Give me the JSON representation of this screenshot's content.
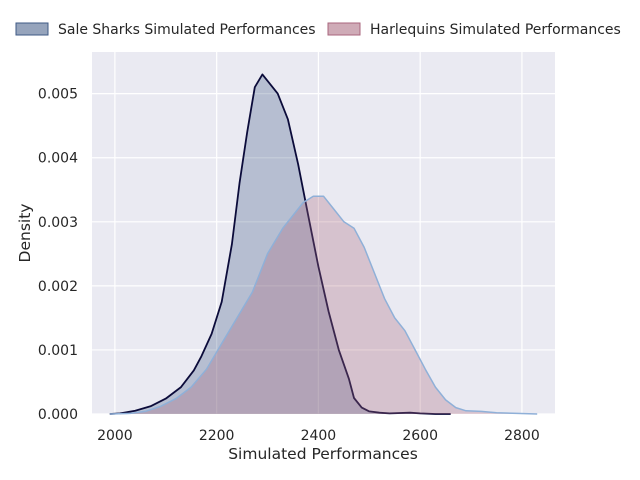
{
  "chart_data": {
    "type": "area",
    "xlabel": "Simulated Performances",
    "ylabel": "Density",
    "xlim": [
      1955,
      2865
    ],
    "ylim": [
      0,
      0.00565
    ],
    "x_ticks": [
      2000,
      2200,
      2400,
      2600,
      2800
    ],
    "x_tick_labels": [
      "2000",
      "2200",
      "2400",
      "2600",
      "2800"
    ],
    "y_ticks": [
      0,
      0.001,
      0.002,
      0.003,
      0.004,
      0.005
    ],
    "y_tick_labels": [
      "0.000",
      "0.001",
      "0.002",
      "0.003",
      "0.004",
      "0.005"
    ],
    "grid": true,
    "legend_position": "top",
    "series": [
      {
        "name": "Sale Sharks Simulated Performances",
        "fill_color": "#3f5a85",
        "line_color": "#0b0b3a",
        "points": [
          [
            1990,
            0.0
          ],
          [
            2010,
            1e-05
          ],
          [
            2040,
            5e-05
          ],
          [
            2070,
            0.00012
          ],
          [
            2100,
            0.00024
          ],
          [
            2130,
            0.00042
          ],
          [
            2155,
            0.00068
          ],
          [
            2170,
            0.0009
          ],
          [
            2190,
            0.00125
          ],
          [
            2210,
            0.00175
          ],
          [
            2230,
            0.00265
          ],
          [
            2245,
            0.0036
          ],
          [
            2260,
            0.0044
          ],
          [
            2275,
            0.0051
          ],
          [
            2290,
            0.0053
          ],
          [
            2300,
            0.0052
          ],
          [
            2320,
            0.005
          ],
          [
            2340,
            0.0046
          ],
          [
            2360,
            0.0039
          ],
          [
            2380,
            0.0031
          ],
          [
            2400,
            0.0023
          ],
          [
            2420,
            0.0016
          ],
          [
            2440,
            0.001
          ],
          [
            2460,
            0.00055
          ],
          [
            2470,
            0.00025
          ],
          [
            2485,
            0.0001
          ],
          [
            2500,
            4e-05
          ],
          [
            2520,
            2e-05
          ],
          [
            2540,
            1e-05
          ],
          [
            2580,
            2e-05
          ],
          [
            2600,
            1e-05
          ],
          [
            2630,
            0.0
          ],
          [
            2660,
            0.0
          ]
        ]
      },
      {
        "name": "Harlequins Simulated Performances",
        "fill_color": "#a8667c",
        "line_color": "#8fb0d8",
        "points": [
          [
            1990,
            0.0
          ],
          [
            2030,
            1e-05
          ],
          [
            2060,
            4e-05
          ],
          [
            2090,
            0.00012
          ],
          [
            2120,
            0.00024
          ],
          [
            2150,
            0.00042
          ],
          [
            2180,
            0.0007
          ],
          [
            2210,
            0.0011
          ],
          [
            2240,
            0.0015
          ],
          [
            2270,
            0.0019
          ],
          [
            2300,
            0.0025
          ],
          [
            2330,
            0.0029
          ],
          [
            2350,
            0.0031
          ],
          [
            2370,
            0.0033
          ],
          [
            2390,
            0.0034
          ],
          [
            2410,
            0.0034
          ],
          [
            2430,
            0.0032
          ],
          [
            2450,
            0.003
          ],
          [
            2470,
            0.0029
          ],
          [
            2490,
            0.0026
          ],
          [
            2510,
            0.0022
          ],
          [
            2530,
            0.0018
          ],
          [
            2550,
            0.0015
          ],
          [
            2570,
            0.0013
          ],
          [
            2590,
            0.001
          ],
          [
            2610,
            0.0007
          ],
          [
            2630,
            0.00042
          ],
          [
            2650,
            0.00022
          ],
          [
            2670,
            0.0001
          ],
          [
            2690,
            5e-05
          ],
          [
            2720,
            4e-05
          ],
          [
            2750,
            2e-05
          ],
          [
            2790,
            1e-05
          ],
          [
            2830,
            0.0
          ]
        ]
      }
    ]
  }
}
